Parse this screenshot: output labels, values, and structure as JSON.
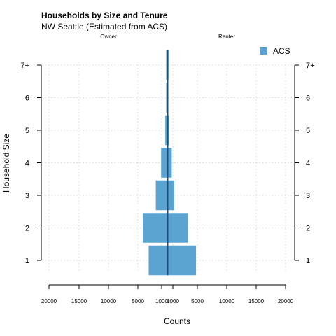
{
  "chart_data": {
    "type": "bar",
    "orientation": "horizontal-pyramid",
    "title": "Households by Size and Tenure",
    "subtitle": "NW Seattle (Estimated from ACS)",
    "left_group_label": "Owner",
    "right_group_label": "Renter",
    "xlabel": "Counts",
    "ylabel": "Household Size",
    "categories": [
      "1",
      "2",
      "3",
      "4",
      "5",
      "7+",
      "6"
    ],
    "category_order": [
      "1",
      "2",
      "3",
      "4",
      "5",
      "6",
      "7+"
    ],
    "x_tick_labels": [
      "20000",
      "15000",
      "10000",
      "5000",
      "1000",
      "1000",
      "5000",
      "10000",
      "15000",
      "20000"
    ],
    "x_tick_values": [
      -20000,
      -15000,
      -10000,
      -5000,
      -1000,
      1000,
      5000,
      10000,
      15000,
      20000
    ],
    "xlim": [
      -20000,
      20000
    ],
    "grid": true,
    "legend_position": "top-right",
    "colors": {
      "bar": "#5ba3d0",
      "axis": "#000000",
      "center_line": "#1f4e79",
      "grid": "#d9d9d9"
    },
    "series": [
      {
        "name": "ACS",
        "owner": [
          3200,
          4200,
          2000,
          1100,
          400,
          250,
          250
        ],
        "renter": [
          4800,
          3400,
          1100,
          700,
          200,
          150,
          100
        ]
      }
    ]
  }
}
